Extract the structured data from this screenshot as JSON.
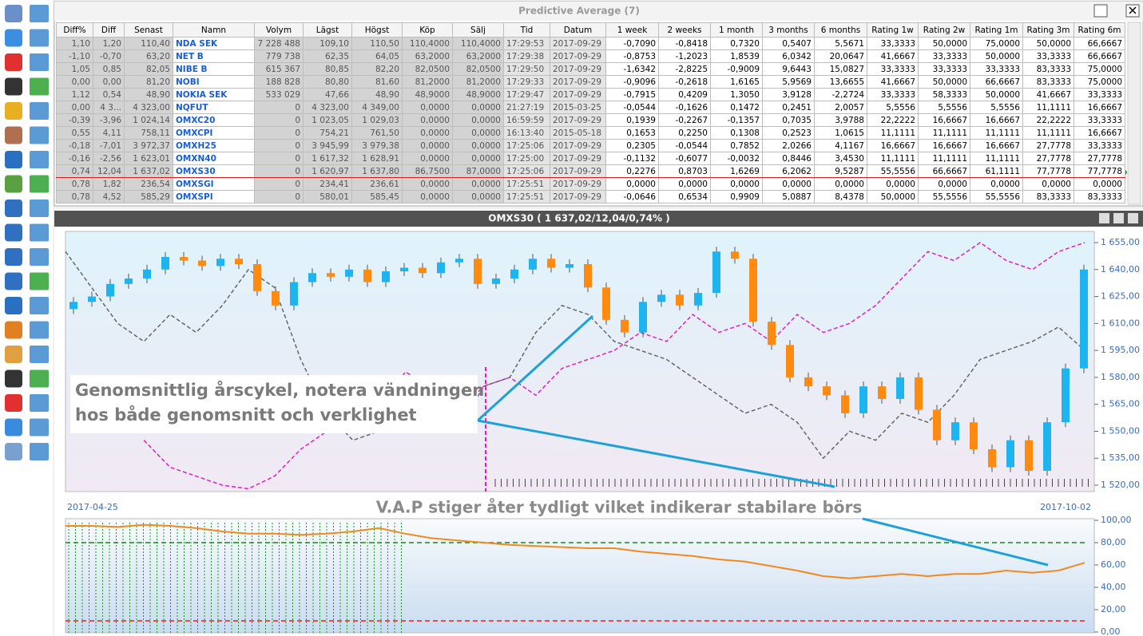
{
  "table": {
    "title": "Predictive Average (7)",
    "header": [
      "Diff%",
      "Diff",
      "Senast",
      "Namn",
      "Volym",
      "Lägst",
      "Högst",
      "Köp",
      "Sälj",
      "Tid",
      "Datum",
      "1 week",
      "2 weeks",
      "1 month",
      "3 months",
      "6 months",
      "Rating 1w",
      "Rating 2w",
      "Rating 1m",
      "Rating 3m",
      "Rating 6m"
    ],
    "rows": [
      [
        "1,10",
        "1,20",
        "110,40",
        "NDA SEK",
        "7 228 488",
        "109,10",
        "110,50",
        "110,4000",
        "110,4000",
        "17:29:53",
        "2017-09-29",
        "-0,7090",
        "-0,8418",
        "0,7320",
        "0,5407",
        "5,5671",
        "33,3333",
        "50,0000",
        "75,0000",
        "50,0000",
        "66,6667"
      ],
      [
        "-1,10",
        "-0,70",
        "63,20",
        "NET B",
        "779 738",
        "62,35",
        "64,05",
        "63,2000",
        "63,2000",
        "17:29:38",
        "2017-09-29",
        "-0,8753",
        "-1,2023",
        "1,8539",
        "6,0342",
        "20,0647",
        "41,6667",
        "33,3333",
        "50,0000",
        "33,3333",
        "66,6667"
      ],
      [
        "1,05",
        "0,85",
        "82,05",
        "NIBE B",
        "615 367",
        "80,85",
        "82,20",
        "82,0500",
        "82,0500",
        "17:29:50",
        "2017-09-29",
        "-1,6342",
        "-2,8225",
        "-0,9009",
        "9,6443",
        "15,0827",
        "33,3333",
        "33,3333",
        "33,3333",
        "83,3333",
        "75,0000"
      ],
      [
        "0,00",
        "0,00",
        "81,20",
        "NOBI",
        "188 828",
        "80,80",
        "81,60",
        "81,2000",
        "81,2000",
        "17:29:33",
        "2017-09-29",
        "-0,9096",
        "-0,2618",
        "1,6165",
        "5,9569",
        "13,6655",
        "41,6667",
        "50,0000",
        "66,6667",
        "83,3333",
        "75,0000"
      ],
      [
        "1,12",
        "0,54",
        "48,90",
        "NOKIA SEK",
        "533 029",
        "47,66",
        "48,90",
        "48,9000",
        "48,9000",
        "17:29:47",
        "2017-09-29",
        "-0,7915",
        "0,4209",
        "1,3050",
        "3,9128",
        "-2,2724",
        "33,3333",
        "58,3333",
        "50,0000",
        "41,6667",
        "33,3333"
      ],
      [
        "0,00",
        "4 3...",
        "4 323,00",
        "NQFUT",
        "0",
        "4 323,00",
        "4 349,00",
        "0,0000",
        "0,0000",
        "21:27:19",
        "2015-03-25",
        "-0,0544",
        "-0,1626",
        "0,1472",
        "0,2451",
        "2,0057",
        "5,5556",
        "5,5556",
        "5,5556",
        "11,1111",
        "16,6667"
      ],
      [
        "-0,39",
        "-3,96",
        "1 024,14",
        "OMXC20",
        "0",
        "1 023,05",
        "1 029,03",
        "0,0000",
        "0,0000",
        "16:59:59",
        "2017-09-29",
        "0,1939",
        "-0,2267",
        "-0,1357",
        "0,7035",
        "3,9788",
        "22,2222",
        "16,6667",
        "16,6667",
        "22,2222",
        "33,3333"
      ],
      [
        "0,55",
        "4,11",
        "758,11",
        "OMXCPI",
        "0",
        "754,21",
        "761,50",
        "0,0000",
        "0,0000",
        "16:13:40",
        "2015-05-18",
        "0,1653",
        "0,2250",
        "0,1308",
        "0,2523",
        "1,0615",
        "11,1111",
        "11,1111",
        "11,1111",
        "11,1111",
        "16,6667"
      ],
      [
        "-0,18",
        "-7,01",
        "3 972,37",
        "OMXH25",
        "0",
        "3 945,99",
        "3 979,38",
        "0,0000",
        "0,0000",
        "17:25:06",
        "2017-09-29",
        "0,2305",
        "-0,0544",
        "0,7852",
        "2,0266",
        "4,1167",
        "16,6667",
        "16,6667",
        "16,6667",
        "27,7778",
        "33,3333"
      ],
      [
        "-0,16",
        "-2,56",
        "1 623,01",
        "OMXN40",
        "0",
        "1 617,32",
        "1 628,91",
        "0,0000",
        "0,0000",
        "17:25:00",
        "2017-09-29",
        "-0,1132",
        "-0,6077",
        "-0,0032",
        "0,8446",
        "3,4530",
        "11,1111",
        "11,1111",
        "11,1111",
        "27,7778",
        "27,7778"
      ],
      [
        "0,74",
        "12,04",
        "1 637,02",
        "OMXS30",
        "0",
        "1 620,97",
        "1 637,80",
        "86,7500",
        "87,0000",
        "17:25:06",
        "2017-09-29",
        "0,2276",
        "0,8703",
        "1,6269",
        "6,2062",
        "9,5287",
        "55,5556",
        "66,6667",
        "61,1111",
        "77,7778",
        "77,7778"
      ],
      [
        "0,78",
        "1,82",
        "236,54",
        "OMXSGI",
        "0",
        "234,41",
        "236,61",
        "0,0000",
        "0,0000",
        "17:25:51",
        "2017-09-29",
        "0,0000",
        "0,0000",
        "0,0000",
        "0,0000",
        "0,0000",
        "0,0000",
        "0,0000",
        "0,0000",
        "0,0000",
        "0,0000"
      ],
      [
        "0,78",
        "4,52",
        "585,29",
        "OMXSPI",
        "0",
        "580,01",
        "585,45",
        "0,0000",
        "0,0000",
        "17:25:51",
        "2017-09-29",
        "-0,0646",
        "0,6534",
        "0,9909",
        "5,0887",
        "8,4378",
        "50,0000",
        "55,5556",
        "55,5556",
        "83,3333",
        "83,3333"
      ]
    ]
  },
  "chart": {
    "title": "OMXS30 ( 1 637,02/12,04/0,74% )",
    "yticks": [
      {
        "value": 1655,
        "label": "1 655,00"
      },
      {
        "value": 1640,
        "label": "1 640,00"
      },
      {
        "value": 1625,
        "label": "1 625,00"
      },
      {
        "value": 1610,
        "label": "1 610,00"
      },
      {
        "value": 1595,
        "label": "1 595,00"
      },
      {
        "value": 1580,
        "label": "1 580,00"
      },
      {
        "value": 1565,
        "label": "1 565,00"
      },
      {
        "value": 1550,
        "label": "1 550,00"
      },
      {
        "value": 1535,
        "label": "1 535,00"
      },
      {
        "value": 1520,
        "label": "1 520,00"
      }
    ],
    "open": [
      1618,
      1622,
      1625,
      1632,
      1635,
      1640,
      1647,
      1645,
      1642,
      1646,
      1643,
      1628,
      1620,
      1633,
      1638,
      1636,
      1640,
      1633,
      1639,
      1641,
      1638,
      1644,
      1646,
      1632,
      1635,
      1640,
      1646,
      1641,
      1643,
      1630,
      1612,
      1605,
      1622,
      1626,
      1620,
      1627,
      1650,
      1646,
      1611,
      1598,
      1580,
      1575,
      1570,
      1560,
      1575,
      1568,
      1580,
      1562,
      1545,
      1555,
      1540,
      1530,
      1545,
      1528,
      1555,
      1585
    ],
    "close": [
      1622,
      1625,
      1632,
      1635,
      1640,
      1647,
      1645,
      1642,
      1646,
      1643,
      1628,
      1620,
      1633,
      1638,
      1636,
      1640,
      1633,
      1639,
      1641,
      1638,
      1644,
      1646,
      1632,
      1635,
      1640,
      1646,
      1641,
      1643,
      1630,
      1612,
      1605,
      1622,
      1626,
      1620,
      1627,
      1650,
      1646,
      1611,
      1598,
      1580,
      1575,
      1570,
      1560,
      1575,
      1568,
      1580,
      1562,
      1545,
      1555,
      1540,
      1530,
      1545,
      1528,
      1555,
      1585,
      1640
    ],
    "average": [
      1650,
      1630,
      1610,
      1600,
      1615,
      1605,
      1620,
      1640,
      1630,
      1590,
      1560,
      1545,
      1550,
      1560,
      1555,
      1550,
      1575,
      1580,
      1605,
      1620,
      1615,
      1600,
      1595,
      1590,
      1580,
      1570,
      1560,
      1565,
      1555,
      1535,
      1550,
      1545,
      1560,
      1555,
      1570,
      1590,
      1595,
      1600,
      1608,
      1595
    ],
    "cycle": [
      null,
      null,
      null,
      1545,
      1530,
      1525,
      1520,
      1518,
      1525,
      1540,
      1550,
      1560,
      1560,
      1583,
      1575,
      1560,
      1575,
      1580,
      1570,
      1585,
      1590,
      1595,
      1605,
      1600,
      1615,
      1605,
      1610,
      1600,
      1615,
      1605,
      1610,
      1620,
      1635,
      1650,
      1645,
      1655,
      1645,
      1640,
      1650,
      1655
    ],
    "annotation": [
      "Genomsnittlig årscykel, notera vändningen",
      "hos både genomsnitt och verklighet"
    ],
    "start_date": "2017-04-25",
    "end_date": "2017-10-02",
    "vap_annotation": "V.A.P stiger åter tydligt vilket indikerar stabilare börs",
    "vap_ticks": [
      {
        "value": 100,
        "label": "100,00"
      },
      {
        "value": 80,
        "label": "80,00"
      },
      {
        "value": 60,
        "label": "60,00"
      },
      {
        "value": 40,
        "label": "40,00"
      },
      {
        "value": 20,
        "label": "20,00"
      },
      {
        "value": 0,
        "label": "0,00"
      }
    ],
    "vap": [
      95,
      95,
      94,
      96,
      95,
      93,
      90,
      88,
      88,
      87,
      88,
      90,
      93,
      88,
      84,
      82,
      80,
      78,
      77,
      76,
      75,
      75,
      72,
      70,
      68,
      65,
      63,
      59,
      55,
      50,
      48,
      50,
      52,
      50,
      52,
      52,
      55,
      53,
      55,
      62
    ]
  }
}
